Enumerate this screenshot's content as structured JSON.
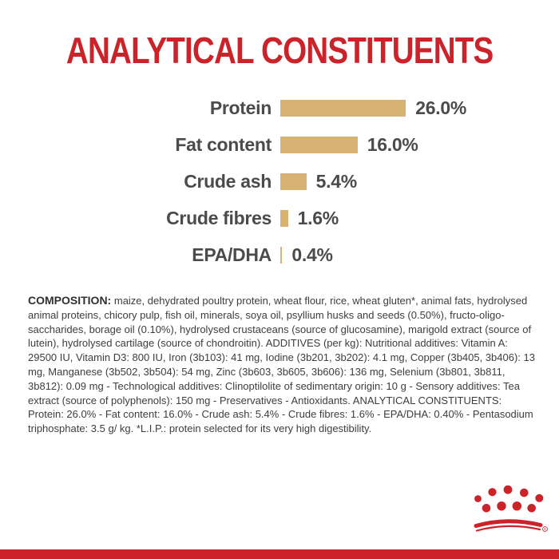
{
  "title": "ANALYTICAL CONSTITUENTS",
  "colors": {
    "brand_red": "#cc2229",
    "bar_gold": "#d8b272",
    "label_gray": "#4b4b49",
    "body_text_gray": "#3d3d3d"
  },
  "chart_data": {
    "type": "bar",
    "orientation": "horizontal",
    "title": "ANALYTICAL CONSTITUENTS",
    "categories": [
      "Protein",
      "Fat content",
      "Crude ash",
      "Crude fibres",
      "EPA/DHA"
    ],
    "values": [
      26.0,
      16.0,
      5.4,
      1.6,
      0.4
    ],
    "value_labels": [
      "26.0%",
      "16.0%",
      "5.4%",
      "1.6%",
      "0.4%"
    ],
    "unit": "%",
    "xlim": [
      0,
      26
    ],
    "grid": false,
    "legend": "none",
    "bar_color": "#d8b272"
  },
  "composition": {
    "label": "COMPOSITION:",
    "text": "maize, dehydrated poultry protein, wheat flour, rice, wheat gluten*, animal fats, hydrolysed animal proteins, chicory pulp, fish oil, minerals, soya oil, psyllium husks and seeds (0.50%), fructo-oligo-saccharides, borage oil (0.10%), hydrolysed crustaceans (source of glucosamine), marigold extract (source of lutein), hydrolysed cartilage (source of chondroitin). ADDITIVES (per kg): Nutritional additives: Vitamin A: 29500 IU, Vitamin D3: 800 IU, Iron (3b103): 41 mg, Iodine (3b201, 3b202): 4.1 mg, Copper (3b405, 3b406): 13 mg, Manganese (3b502, 3b504): 54 mg, Zinc (3b603, 3b605, 3b606): 136 mg, Selenium (3b801, 3b811, 3b812): 0.09 mg - Technological additives: Clinoptilolite of sedimentary origin: 10 g - Sensory additives: Tea extract (source of polyphenols): 150 mg - Preservatives - Antioxidants. ANALYTICAL CONSTITUENTS: Protein: 26.0% - Fat content: 16.0% - Crude ash: 5.4% - Crude fibres: 1.6% - EPA/DHA: 0.40% - Pentasodium triphosphate: 3.5 g/ kg. *L.I.P.: protein selected for its very high digestibility."
  },
  "logo": {
    "name": "royal-canin-crown",
    "registered_mark": "R"
  }
}
